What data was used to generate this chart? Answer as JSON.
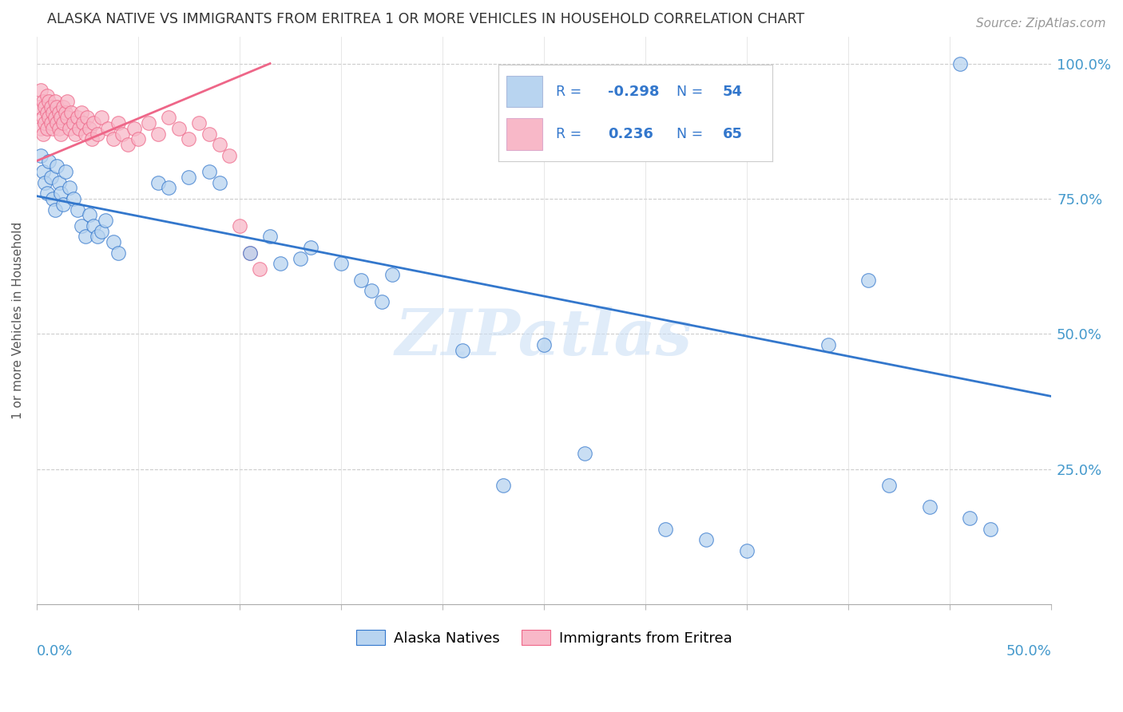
{
  "title": "ALASKA NATIVE VS IMMIGRANTS FROM ERITREA 1 OR MORE VEHICLES IN HOUSEHOLD CORRELATION CHART",
  "source": "Source: ZipAtlas.com",
  "ylabel": "1 or more Vehicles in Household",
  "xmin": 0.0,
  "xmax": 0.5,
  "ymin": 0.0,
  "ymax": 1.05,
  "blue_color": "#b8d4f0",
  "pink_color": "#f8b8c8",
  "trend_blue": "#3377cc",
  "trend_pink": "#ee6688",
  "watermark": "ZIPatlas",
  "blue_trend_x": [
    0.0,
    0.5
  ],
  "blue_trend_y": [
    0.755,
    0.385
  ],
  "pink_trend_x": [
    0.0,
    0.115
  ],
  "pink_trend_y": [
    0.82,
    1.0
  ],
  "alaska_x": [
    0.002,
    0.003,
    0.004,
    0.005,
    0.006,
    0.007,
    0.008,
    0.009,
    0.01,
    0.011,
    0.012,
    0.013,
    0.014,
    0.016,
    0.018,
    0.02,
    0.022,
    0.024,
    0.026,
    0.028,
    0.03,
    0.032,
    0.034,
    0.038,
    0.04,
    0.06,
    0.065,
    0.075,
    0.085,
    0.09,
    0.105,
    0.115,
    0.12,
    0.13,
    0.135,
    0.15,
    0.16,
    0.165,
    0.17,
    0.175,
    0.21,
    0.23,
    0.25,
    0.27,
    0.31,
    0.33,
    0.35,
    0.39,
    0.41,
    0.42,
    0.44,
    0.455,
    0.46,
    0.47
  ],
  "alaska_y": [
    0.83,
    0.8,
    0.78,
    0.76,
    0.82,
    0.79,
    0.75,
    0.73,
    0.81,
    0.78,
    0.76,
    0.74,
    0.8,
    0.77,
    0.75,
    0.73,
    0.7,
    0.68,
    0.72,
    0.7,
    0.68,
    0.69,
    0.71,
    0.67,
    0.65,
    0.78,
    0.77,
    0.79,
    0.8,
    0.78,
    0.65,
    0.68,
    0.63,
    0.64,
    0.66,
    0.63,
    0.6,
    0.58,
    0.56,
    0.61,
    0.47,
    0.22,
    0.48,
    0.28,
    0.14,
    0.12,
    0.1,
    0.48,
    0.6,
    0.22,
    0.18,
    1.0,
    0.16,
    0.14
  ],
  "eritrea_x": [
    0.001,
    0.002,
    0.002,
    0.003,
    0.003,
    0.003,
    0.004,
    0.004,
    0.005,
    0.005,
    0.005,
    0.006,
    0.006,
    0.007,
    0.007,
    0.008,
    0.008,
    0.009,
    0.009,
    0.01,
    0.01,
    0.011,
    0.011,
    0.012,
    0.012,
    0.013,
    0.013,
    0.014,
    0.015,
    0.015,
    0.016,
    0.017,
    0.018,
    0.019,
    0.02,
    0.021,
    0.022,
    0.023,
    0.024,
    0.025,
    0.026,
    0.027,
    0.028,
    0.03,
    0.032,
    0.035,
    0.038,
    0.04,
    0.042,
    0.045,
    0.048,
    0.05,
    0.055,
    0.06,
    0.065,
    0.07,
    0.075,
    0.08,
    0.085,
    0.09,
    0.095,
    0.1,
    0.105,
    0.11
  ],
  "eritrea_y": [
    0.92,
    0.95,
    0.88,
    0.93,
    0.9,
    0.87,
    0.92,
    0.89,
    0.94,
    0.91,
    0.88,
    0.93,
    0.9,
    0.92,
    0.89,
    0.91,
    0.88,
    0.93,
    0.9,
    0.92,
    0.89,
    0.91,
    0.88,
    0.9,
    0.87,
    0.92,
    0.89,
    0.91,
    0.93,
    0.9,
    0.88,
    0.91,
    0.89,
    0.87,
    0.9,
    0.88,
    0.91,
    0.89,
    0.87,
    0.9,
    0.88,
    0.86,
    0.89,
    0.87,
    0.9,
    0.88,
    0.86,
    0.89,
    0.87,
    0.85,
    0.88,
    0.86,
    0.89,
    0.87,
    0.9,
    0.88,
    0.86,
    0.89,
    0.87,
    0.85,
    0.83,
    0.7,
    0.65,
    0.62
  ]
}
